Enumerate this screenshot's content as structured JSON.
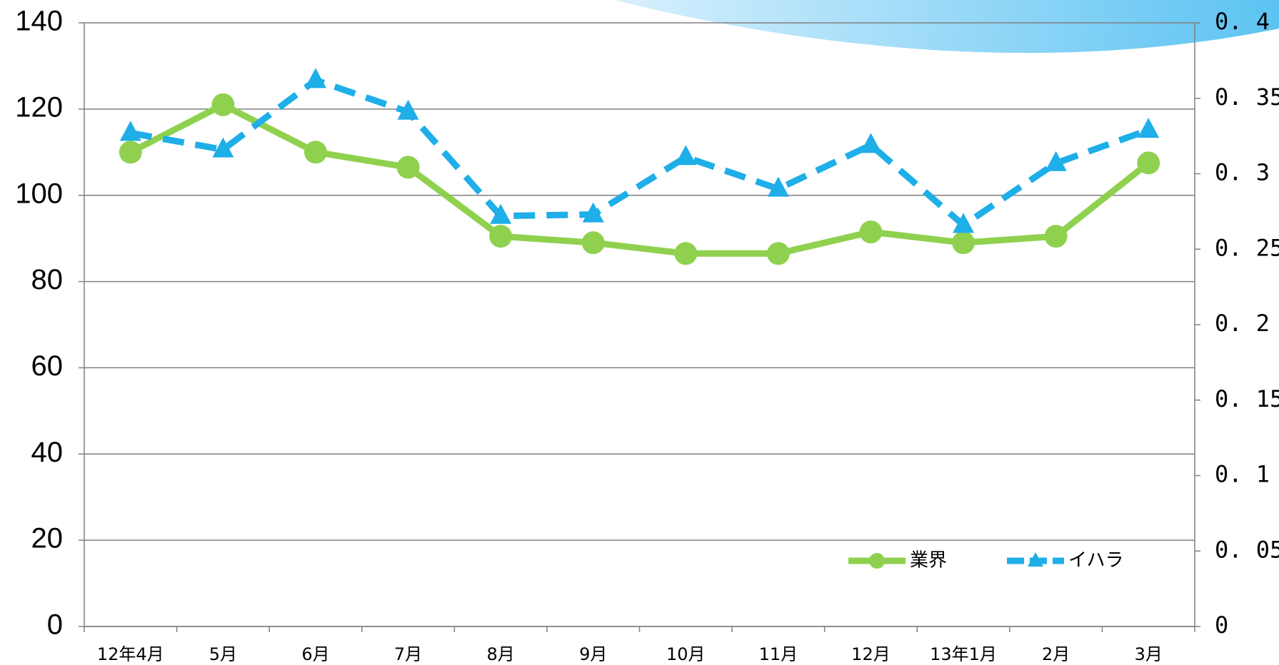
{
  "chart_data": {
    "type": "line",
    "categories": [
      "12年4月",
      "5月",
      "6月",
      "7月",
      "8月",
      "9月",
      "10月",
      "11月",
      "12月",
      "13年1月",
      "2月",
      "3月"
    ],
    "series": [
      {
        "name": "業界",
        "color": "#8fd14f",
        "marker": "circle",
        "dash": false,
        "values": [
          110,
          121,
          110,
          106.5,
          90.5,
          89,
          86.5,
          86.5,
          91.5,
          89,
          90.5,
          107.5
        ]
      },
      {
        "name": "イハラ",
        "color": "#1eaee8",
        "marker": "triangle",
        "dash": true,
        "axis": "y2",
        "values": [
          0.327,
          0.316,
          0.362,
          0.341,
          0.272,
          0.273,
          0.311,
          0.29,
          0.319,
          0.266,
          0.307,
          0.329
        ]
      }
    ],
    "ylim": [
      0,
      140
    ],
    "yticks": [
      0,
      20,
      40,
      60,
      80,
      100,
      120,
      140
    ],
    "y2lim": [
      0,
      0.4
    ],
    "y2ticks": [
      0,
      {
        "value": 0.05,
        "label": "0. 05"
      },
      {
        "value": 0.1,
        "label": "0. 1"
      },
      {
        "value": 0.15,
        "label": "0. 15"
      },
      {
        "value": 0.2,
        "label": "0. 2"
      },
      {
        "value": 0.25,
        "label": "0. 25"
      },
      {
        "value": 0.3,
        "label": "0. 3"
      },
      {
        "value": 0.35,
        "label": "0. 35"
      },
      {
        "value": 0.4,
        "label": "0. 4"
      }
    ],
    "grid": true,
    "legend": "lower right"
  }
}
